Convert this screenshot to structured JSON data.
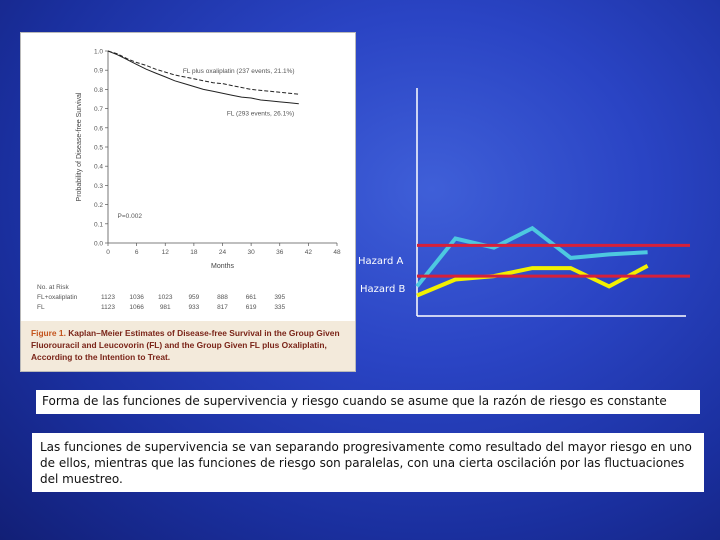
{
  "colors": {
    "background": "#2a44c4",
    "hazard_a_line": "#4dc8e0",
    "hazard_b_line": "#f2f000",
    "reference_line": "#d6203a",
    "survival_curves": "#222222"
  },
  "figure": {
    "caption_label": "Figure 1.",
    "caption_text": "Kaplan–Meier Estimates of Disease-free Survival in the Group Given Fluorouracil and Leucovorin (FL) and the Group Given FL plus Oxaliplatin, According to the Intention to Treat.",
    "at_risk": {
      "title": "No. at Risk",
      "rows": [
        {
          "label": "FL+oxaliplatin",
          "values": [
            "1123",
            "1036",
            "1023",
            "959",
            "888",
            "661",
            "395"
          ]
        },
        {
          "label": "FL",
          "values": [
            "1123",
            "1066",
            "981",
            "933",
            "817",
            "619",
            "335"
          ]
        }
      ]
    }
  },
  "chart_data": [
    {
      "type": "line",
      "title": "",
      "xlabel": "Months",
      "ylabel": "Probability of Disease-free Survival",
      "xlim": [
        0,
        48
      ],
      "ylim": [
        0.0,
        1.0
      ],
      "xticks": [
        0,
        6,
        12,
        18,
        24,
        30,
        36,
        42,
        48
      ],
      "yticks": [
        0.0,
        0.1,
        0.2,
        0.3,
        0.4,
        0.5,
        0.6,
        0.7,
        0.8,
        0.9,
        1.0
      ],
      "p_value": "P=0.002",
      "series": [
        {
          "name": "FL plus oxaliplatin (237 events, 21.1%)",
          "style": "dashed",
          "x": [
            0,
            2,
            4,
            6,
            8,
            10,
            12,
            14,
            16,
            18,
            20,
            22,
            24,
            26,
            28,
            30,
            32,
            34,
            36,
            38,
            40
          ],
          "y": [
            1.0,
            0.985,
            0.96,
            0.94,
            0.925,
            0.905,
            0.89,
            0.875,
            0.865,
            0.855,
            0.845,
            0.835,
            0.83,
            0.82,
            0.81,
            0.8,
            0.795,
            0.79,
            0.785,
            0.78,
            0.775
          ]
        },
        {
          "name": "FL (293 events, 26.1%)",
          "style": "solid",
          "x": [
            0,
            2,
            4,
            6,
            8,
            10,
            12,
            14,
            16,
            18,
            20,
            22,
            24,
            26,
            28,
            30,
            32,
            34,
            36,
            38,
            40
          ],
          "y": [
            1.0,
            0.98,
            0.955,
            0.93,
            0.905,
            0.885,
            0.865,
            0.845,
            0.83,
            0.815,
            0.8,
            0.79,
            0.78,
            0.77,
            0.76,
            0.755,
            0.745,
            0.74,
            0.735,
            0.73,
            0.725
          ]
        }
      ]
    },
    {
      "type": "line",
      "title": "",
      "xlabel": "",
      "ylabel": "",
      "xlim": [
        0,
        7
      ],
      "ylim": [
        0,
        10
      ],
      "grid": false,
      "series": [
        {
          "name": "Hazard A",
          "color": "#4dc8e0",
          "x": [
            0,
            1,
            2,
            3,
            4,
            5,
            6
          ],
          "y": [
            1.3,
            3.4,
            3.0,
            3.85,
            2.55,
            2.7,
            2.8
          ]
        },
        {
          "name": "Hazard B",
          "color": "#f2f000",
          "x": [
            0,
            1,
            2,
            3,
            4,
            5,
            6
          ],
          "y": [
            0.9,
            1.6,
            1.75,
            2.1,
            2.1,
            1.3,
            2.2
          ]
        }
      ],
      "reference_lines": [
        {
          "name": "Hazard A",
          "y": 3.1,
          "color": "#d6203a"
        },
        {
          "name": "Hazard B",
          "y": 1.75,
          "color": "#d6203a"
        }
      ]
    }
  ],
  "text_boxes": {
    "title_line": "Forma de las funciones de supervivencia y riesgo cuando se asume que la razón de riesgo es constante",
    "explanation": "Las funciones de supervivencia se van separando progresivamente como resultado del mayor riesgo en uno de ellos, mientras que las funciones de riesgo son paralelas, con una cierta oscilación por las fluctuaciones del muestreo."
  }
}
